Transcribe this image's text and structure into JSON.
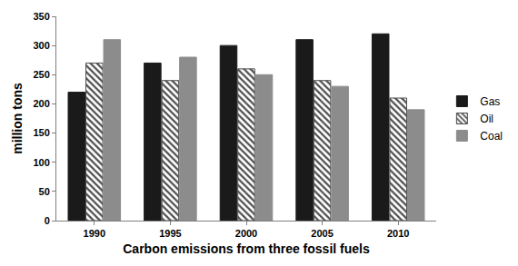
{
  "chart_data": {
    "type": "bar",
    "x_label": "Carbon emissions from three fossil fuels",
    "y_label": "million tons",
    "categories": [
      "1990",
      "1995",
      "2000",
      "2005",
      "2010"
    ],
    "series": [
      {
        "name": "Gas",
        "color": "#1a1a1a",
        "values": [
          220,
          270,
          300,
          310,
          320
        ]
      },
      {
        "name": "Oil",
        "color": "#4d4d4d",
        "marker": "hatch",
        "values": [
          270,
          240,
          260,
          240,
          210
        ]
      },
      {
        "name": "Coal",
        "color": "#8c8c8c",
        "values": [
          310,
          280,
          250,
          230,
          190
        ]
      }
    ],
    "ylim": [
      0,
      350
    ],
    "yticks": [
      0,
      50,
      100,
      150,
      200,
      250,
      300,
      350
    ],
    "grid": false,
    "legend": "right"
  }
}
